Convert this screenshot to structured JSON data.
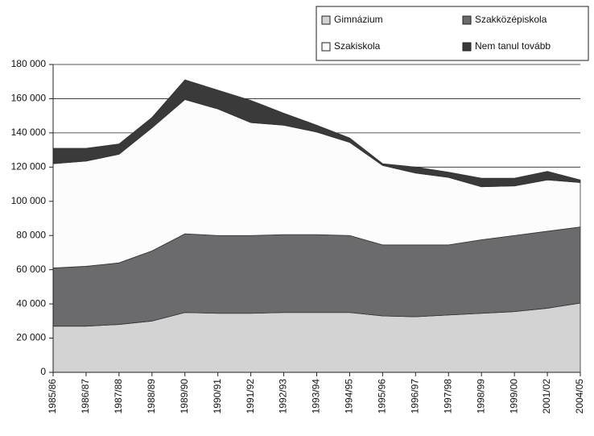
{
  "chart_data": {
    "type": "stacked_area",
    "categories": [
      "1985/86",
      "1986/87",
      "1987/88",
      "1988/89",
      "1989/90",
      "1990/91",
      "1991/92",
      "1992/93",
      "1993/94",
      "1994/95",
      "1995/96",
      "1996/97",
      "1997/98",
      "1998/99",
      "1999/00",
      "2001/02",
      "2004/05"
    ],
    "series": [
      {
        "name": "Gimnázium",
        "color": "#d3d3d3",
        "values": [
          27000,
          27000,
          28000,
          30000,
          35000,
          34500,
          34500,
          35000,
          35000,
          35000,
          33000,
          32500,
          33500,
          34500,
          35500,
          37500,
          40500
        ]
      },
      {
        "name": "Szakközépiskola",
        "color": "#6b6b6e",
        "values": [
          34000,
          35000,
          36000,
          41000,
          46000,
          45500,
          45500,
          45500,
          45500,
          45000,
          41500,
          42000,
          41000,
          43000,
          44500,
          45000,
          44500
        ]
      },
      {
        "name": "Szakiskola",
        "color": "#fcfcfc",
        "values": [
          61000,
          61500,
          63500,
          72000,
          78500,
          74000,
          66000,
          64000,
          60000,
          54500,
          46500,
          42000,
          39500,
          31000,
          29000,
          30000,
          26000
        ]
      },
      {
        "name": "Nem tanul tovább",
        "color": "#3a3a3a",
        "values": [
          9000,
          7500,
          6000,
          6000,
          11500,
          11000,
          13000,
          7000,
          4000,
          2500,
          1000,
          3500,
          3000,
          5000,
          4500,
          5000,
          1500
        ]
      }
    ],
    "ylim": [
      0,
      180000
    ],
    "yticks": [
      0,
      {
        "value": 20000,
        "label": "20 000"
      },
      {
        "value": 40000,
        "label": "40 000"
      },
      {
        "value": 60000,
        "label": "60 000"
      },
      {
        "value": 80000,
        "label": "80 000"
      },
      {
        "value": 100000,
        "label": "100 000"
      },
      {
        "value": 120000,
        "label": "120 000"
      },
      {
        "value": 140000,
        "label": "140 000"
      },
      {
        "value": 160000,
        "label": "160 000"
      },
      {
        "value": 180000,
        "label": "180 000"
      }
    ],
    "grid": true,
    "legend": "top-right"
  }
}
